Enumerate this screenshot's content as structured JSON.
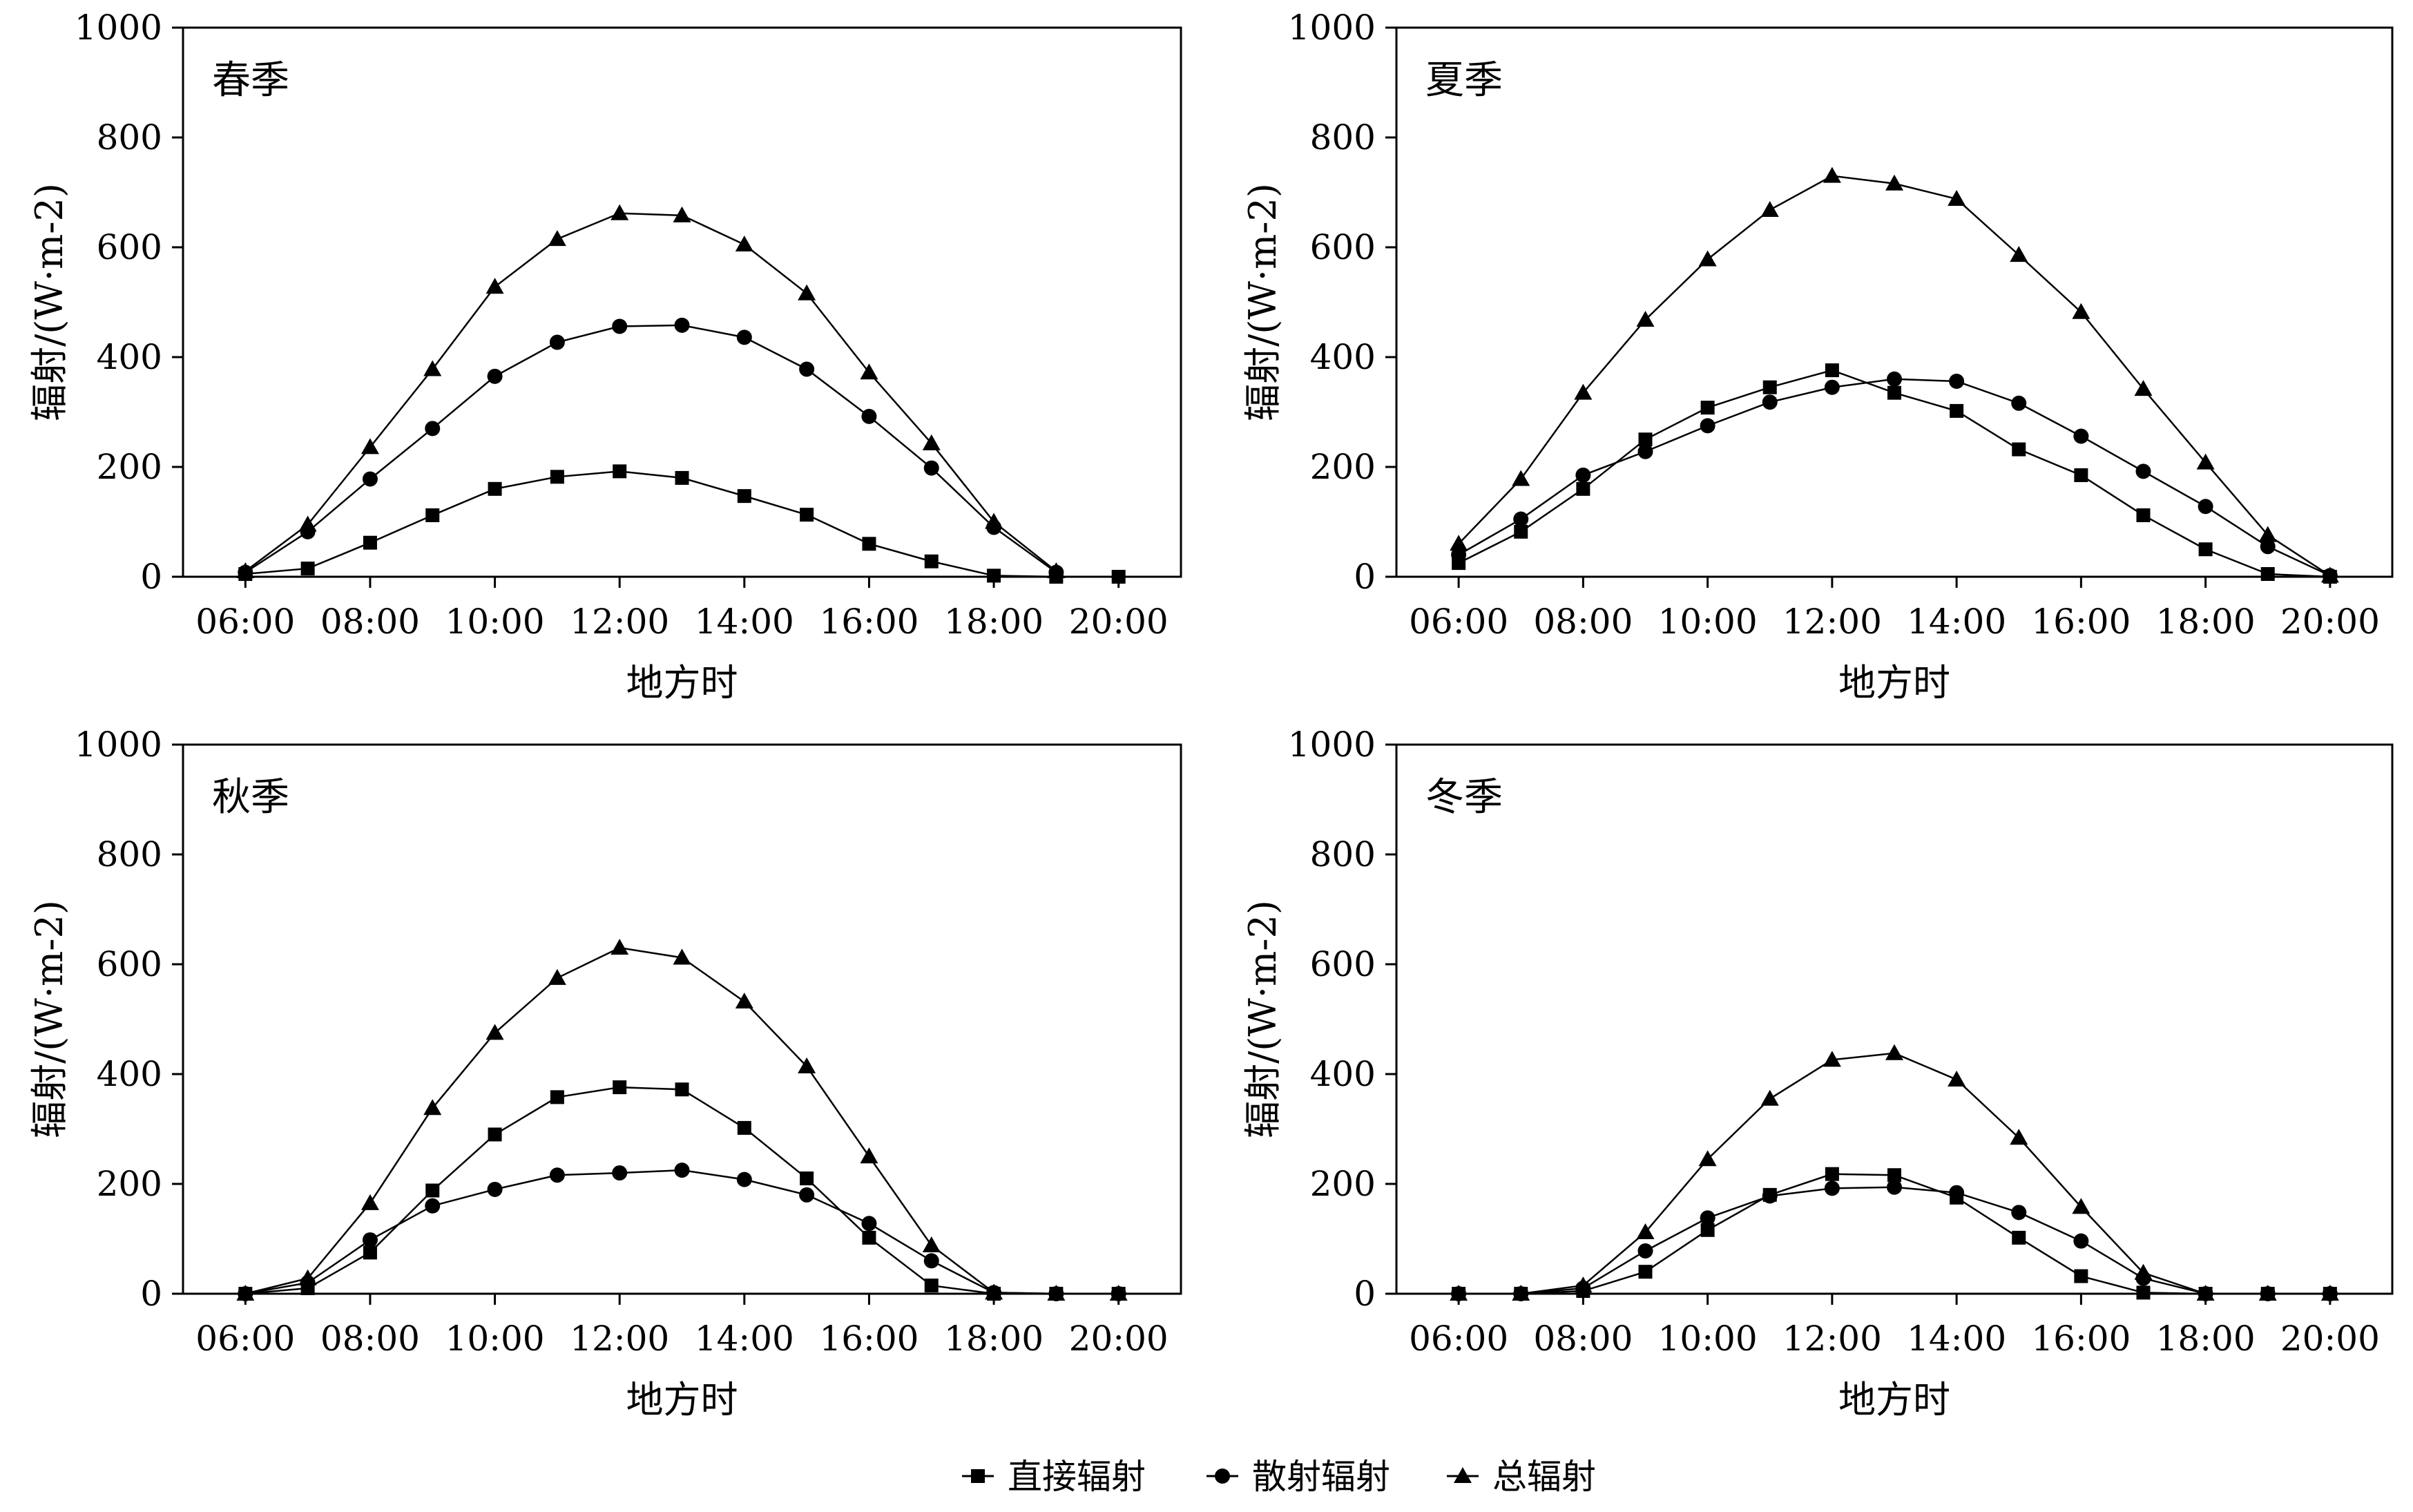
{
  "legend": {
    "items": [
      {
        "label": "直接辐射",
        "marker": "square"
      },
      {
        "label": "散射辐射",
        "marker": "circle"
      },
      {
        "label": "总辐射",
        "marker": "triangle"
      }
    ]
  },
  "chart_data": [
    {
      "type": "line",
      "title": "春季",
      "xlabel": "地方时",
      "ylabel": "辐射/(W·m-2)",
      "ylim": [
        0,
        1000
      ],
      "xlim": [
        "05:00",
        "21:00"
      ],
      "x_ticks": [
        "06:00",
        "08:00",
        "10:00",
        "12:00",
        "14:00",
        "16:00",
        "18:00",
        "20:00"
      ],
      "y_ticks": [
        "0",
        "200",
        "400",
        "600",
        "800",
        "1000"
      ],
      "grid": false,
      "series": [
        {
          "name": "直接辐射",
          "marker": "square",
          "x": [
            "06:00",
            "07:00",
            "08:00",
            "09:00",
            "10:00",
            "11:00",
            "12:00",
            "13:00",
            "14:00",
            "15:00",
            "16:00",
            "17:00",
            "18:00",
            "19:00",
            "20:00"
          ],
          "values": [
            5,
            15,
            62,
            112,
            160,
            182,
            192,
            180,
            147,
            113,
            60,
            28,
            2,
            0,
            0
          ]
        },
        {
          "name": "散射辐射",
          "marker": "circle",
          "x": [
            "06:00",
            "07:00",
            "08:00",
            "09:00",
            "10:00",
            "11:00",
            "12:00",
            "13:00",
            "14:00",
            "15:00",
            "16:00",
            "17:00",
            "18:00",
            "19:00"
          ],
          "values": [
            8,
            82,
            178,
            270,
            365,
            427,
            456,
            458,
            436,
            378,
            292,
            198,
            90,
            8
          ]
        },
        {
          "name": "总辐射",
          "marker": "triangle",
          "x": [
            "06:00",
            "07:00",
            "08:00",
            "09:00",
            "10:00",
            "11:00",
            "12:00",
            "13:00",
            "14:00",
            "15:00",
            "16:00",
            "17:00",
            "18:00",
            "19:00"
          ],
          "values": [
            10,
            95,
            236,
            378,
            528,
            615,
            662,
            658,
            605,
            516,
            372,
            243,
            100,
            10
          ]
        }
      ]
    },
    {
      "type": "line",
      "title": "夏季",
      "xlabel": "地方时",
      "ylabel": "辐射/(W·m-2)",
      "ylim": [
        0,
        1000
      ],
      "xlim": [
        "05:00",
        "21:00"
      ],
      "x_ticks": [
        "06:00",
        "08:00",
        "10:00",
        "12:00",
        "14:00",
        "16:00",
        "18:00",
        "20:00"
      ],
      "y_ticks": [
        "0",
        "200",
        "400",
        "600",
        "800",
        "1000"
      ],
      "grid": false,
      "series": [
        {
          "name": "直接辐射",
          "marker": "square",
          "x": [
            "06:00",
            "07:00",
            "08:00",
            "09:00",
            "10:00",
            "11:00",
            "12:00",
            "13:00",
            "14:00",
            "15:00",
            "16:00",
            "17:00",
            "18:00",
            "19:00",
            "20:00"
          ],
          "values": [
            25,
            82,
            160,
            250,
            308,
            345,
            376,
            335,
            302,
            232,
            185,
            112,
            50,
            5,
            0
          ]
        },
        {
          "name": "散射辐射",
          "marker": "circle",
          "x": [
            "06:00",
            "07:00",
            "08:00",
            "09:00",
            "10:00",
            "11:00",
            "12:00",
            "13:00",
            "14:00",
            "15:00",
            "16:00",
            "17:00",
            "18:00",
            "19:00",
            "20:00"
          ],
          "values": [
            40,
            105,
            185,
            228,
            275,
            318,
            345,
            360,
            356,
            316,
            256,
            192,
            128,
            55,
            2
          ]
        },
        {
          "name": "总辐射",
          "marker": "triangle",
          "x": [
            "06:00",
            "07:00",
            "08:00",
            "09:00",
            "10:00",
            "11:00",
            "12:00",
            "13:00",
            "14:00",
            "15:00",
            "16:00",
            "17:00",
            "18:00",
            "19:00",
            "20:00"
          ],
          "values": [
            60,
            178,
            335,
            468,
            578,
            668,
            730,
            716,
            688,
            586,
            482,
            342,
            208,
            76,
            2
          ]
        }
      ]
    },
    {
      "type": "line",
      "title": "秋季",
      "xlabel": "地方时",
      "ylabel": "辐射/(W·m-2)",
      "ylim": [
        0,
        1000
      ],
      "xlim": [
        "05:00",
        "21:00"
      ],
      "x_ticks": [
        "06:00",
        "08:00",
        "10:00",
        "12:00",
        "14:00",
        "16:00",
        "18:00",
        "20:00"
      ],
      "y_ticks": [
        "0",
        "200",
        "400",
        "600",
        "800",
        "1000"
      ],
      "grid": false,
      "series": [
        {
          "name": "直接辐射",
          "marker": "square",
          "x": [
            "06:00",
            "07:00",
            "08:00",
            "09:00",
            "10:00",
            "11:00",
            "12:00",
            "13:00",
            "14:00",
            "15:00",
            "16:00",
            "17:00",
            "18:00",
            "19:00",
            "20:00"
          ],
          "values": [
            0,
            10,
            75,
            188,
            290,
            358,
            376,
            372,
            302,
            210,
            102,
            15,
            0,
            0,
            0
          ]
        },
        {
          "name": "散射辐射",
          "marker": "circle",
          "x": [
            "06:00",
            "07:00",
            "08:00",
            "09:00",
            "10:00",
            "11:00",
            "12:00",
            "13:00",
            "14:00",
            "15:00",
            "16:00",
            "17:00",
            "18:00",
            "19:00",
            "20:00"
          ],
          "values": [
            0,
            20,
            98,
            160,
            190,
            216,
            220,
            225,
            208,
            180,
            128,
            60,
            2,
            0,
            0
          ]
        },
        {
          "name": "总辐射",
          "marker": "triangle",
          "x": [
            "06:00",
            "07:00",
            "08:00",
            "09:00",
            "10:00",
            "11:00",
            "12:00",
            "13:00",
            "14:00",
            "15:00",
            "16:00",
            "17:00",
            "18:00",
            "19:00",
            "20:00"
          ],
          "values": [
            0,
            28,
            165,
            338,
            475,
            575,
            630,
            612,
            532,
            414,
            250,
            88,
            2,
            0,
            0
          ]
        }
      ]
    },
    {
      "type": "line",
      "title": "冬季",
      "xlabel": "地方时",
      "ylabel": "辐射/(W·m-2)",
      "ylim": [
        0,
        1000
      ],
      "xlim": [
        "05:00",
        "21:00"
      ],
      "x_ticks": [
        "06:00",
        "08:00",
        "10:00",
        "12:00",
        "14:00",
        "16:00",
        "18:00",
        "20:00"
      ],
      "y_ticks": [
        "0",
        "200",
        "400",
        "600",
        "800",
        "1000"
      ],
      "grid": false,
      "series": [
        {
          "name": "直接辐射",
          "marker": "square",
          "x": [
            "06:00",
            "07:00",
            "08:00",
            "09:00",
            "10:00",
            "11:00",
            "12:00",
            "13:00",
            "14:00",
            "15:00",
            "16:00",
            "17:00",
            "18:00",
            "19:00",
            "20:00"
          ],
          "values": [
            0,
            0,
            5,
            40,
            116,
            180,
            218,
            216,
            175,
            102,
            32,
            2,
            0,
            0,
            0
          ]
        },
        {
          "name": "散射辐射",
          "marker": "circle",
          "x": [
            "06:00",
            "07:00",
            "08:00",
            "09:00",
            "10:00",
            "11:00",
            "12:00",
            "13:00",
            "14:00",
            "15:00",
            "16:00",
            "17:00",
            "18:00",
            "19:00",
            "20:00"
          ],
          "values": [
            0,
            0,
            10,
            78,
            138,
            178,
            192,
            194,
            184,
            148,
            96,
            28,
            0,
            0,
            0
          ]
        },
        {
          "name": "总辐射",
          "marker": "triangle",
          "x": [
            "06:00",
            "07:00",
            "08:00",
            "09:00",
            "10:00",
            "11:00",
            "12:00",
            "13:00",
            "14:00",
            "15:00",
            "16:00",
            "17:00",
            "18:00",
            "19:00",
            "20:00"
          ],
          "values": [
            0,
            0,
            15,
            112,
            245,
            355,
            426,
            438,
            390,
            284,
            158,
            38,
            0,
            0,
            0
          ]
        }
      ]
    }
  ]
}
